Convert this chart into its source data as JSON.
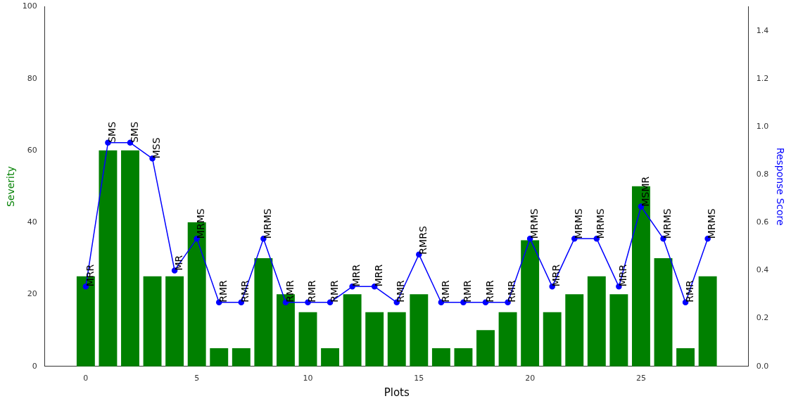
{
  "chart_data": {
    "type": "bar",
    "xlabel": "Plots",
    "ylabel": "Severity",
    "y2label": "Response Score",
    "x": [
      0,
      1,
      2,
      3,
      4,
      5,
      6,
      7,
      8,
      9,
      10,
      11,
      12,
      13,
      14,
      15,
      16,
      17,
      18,
      19,
      20,
      21,
      22,
      23,
      24,
      25,
      26,
      27,
      28
    ],
    "xlim": [
      -1.84,
      29.84
    ],
    "xticks": [
      0,
      5,
      10,
      15,
      20,
      25
    ],
    "ylim": [
      0,
      100
    ],
    "yticks": [
      0,
      20,
      40,
      60,
      80,
      100
    ],
    "y2lim": [
      0,
      1.5
    ],
    "y2ticks": [
      {
        "value": 0,
        "label": "0.0"
      },
      0.2,
      0.4,
      0.6,
      0.8,
      {
        "value": 1,
        "label": "1.0"
      },
      1.2,
      1.4
    ],
    "grid": false,
    "legend": false,
    "series": [
      {
        "color": "#008000",
        "values": [
          25,
          60,
          60,
          25,
          25,
          40,
          5,
          5,
          30,
          20,
          15,
          5,
          20,
          15,
          15,
          20,
          5,
          5,
          10,
          15,
          35,
          15,
          20,
          25,
          20,
          50,
          30,
          5,
          25
        ]
      },
      {
        "type": "line",
        "axis": "y2",
        "color": "#0000ff",
        "marker": "circle",
        "line_style": "solid",
        "values": [
          0.333,
          0.933,
          0.933,
          0.867,
          0.4,
          0.533,
          0.267,
          0.267,
          0.533,
          0.267,
          0.267,
          0.267,
          0.333,
          0.333,
          0.267,
          0.467,
          0.267,
          0.267,
          0.267,
          0.267,
          0.533,
          0.333,
          0.533,
          0.533,
          0.333,
          0.667,
          0.533,
          0.267,
          0.533
        ],
        "value_labels": [
          "MRR",
          "SMS",
          "SMS",
          "MSS",
          "MR",
          "MRMS",
          "RMR",
          "RMR",
          "MRMS",
          "RMR",
          "RMR",
          "RMR",
          "MRR",
          "MRR",
          "RMR",
          "RMRS",
          "RMR",
          "RMR",
          "RMR",
          "RMR",
          "MRMS",
          "MRR",
          "MRMS",
          "MRMS",
          "MRR",
          "MSMR",
          "MRMS",
          "RMR",
          "MRMS"
        ]
      }
    ]
  }
}
